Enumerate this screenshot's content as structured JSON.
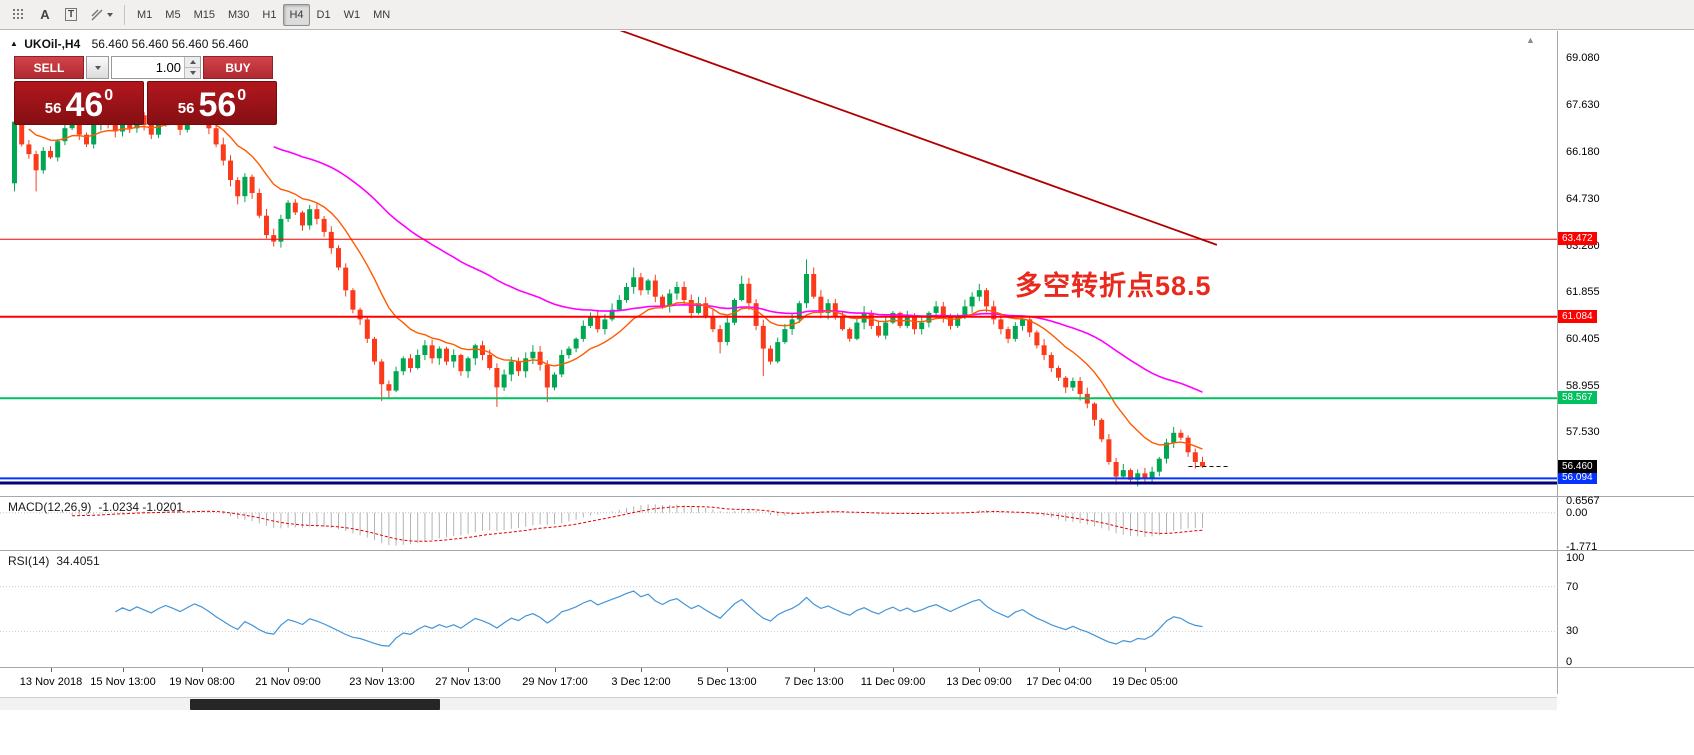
{
  "toolbar": {
    "tool_a": "A",
    "tool_t": "T",
    "timeframes": [
      "M1",
      "M5",
      "M15",
      "M30",
      "H1",
      "H4",
      "D1",
      "W1",
      "MN"
    ],
    "active_timeframe": "H4"
  },
  "chart_header": {
    "title": "UKOil-,H4",
    "quotes": "56.460 56.460 56.460 56.460"
  },
  "trade_panel": {
    "sell_label": "SELL",
    "buy_label": "BUY",
    "volume": "1.00",
    "bid_small": "56",
    "bid_big": "46",
    "bid_sup": "0",
    "ask_small": "56",
    "ask_big": "56",
    "ask_sup": "0"
  },
  "annotation": {
    "text": "多空转折点58.5",
    "color": "#e8291c"
  },
  "indicators": {
    "macd_label": "MACD(12,26,9)",
    "macd_values": "-1.0234 -1.0201",
    "rsi_label": "RSI(14)",
    "rsi_value": "34.4051"
  },
  "chart_data": {
    "type": "candlestick",
    "symbol": "UKOil-",
    "timeframe": "H4",
    "ylim": [
      55.55,
      69.9
    ],
    "first_open": 65.2,
    "closes": [
      67.1,
      66.4,
      66.1,
      65.6,
      66.2,
      66.0,
      66.5,
      66.9,
      67.2,
      66.7,
      66.4,
      67.0,
      67.35,
      67.1,
      66.8,
      67.2,
      66.9,
      67.3,
      67.0,
      66.7,
      67.1,
      67.4,
      67.15,
      66.85,
      67.2,
      67.55,
      67.3,
      66.9,
      66.4,
      65.9,
      65.3,
      64.8,
      65.4,
      64.9,
      64.2,
      63.6,
      63.4,
      64.1,
      64.6,
      64.3,
      63.9,
      64.4,
      64.1,
      63.7,
      63.2,
      62.6,
      61.9,
      61.3,
      61.0,
      60.4,
      59.7,
      59.0,
      58.8,
      59.4,
      59.8,
      59.5,
      59.9,
      60.2,
      59.8,
      60.1,
      59.7,
      59.9,
      59.4,
      59.8,
      60.2,
      59.9,
      59.5,
      58.9,
      59.3,
      59.7,
      59.4,
      59.8,
      60.0,
      59.6,
      58.9,
      59.3,
      59.9,
      60.1,
      60.4,
      60.8,
      61.1,
      60.7,
      61.0,
      61.3,
      61.6,
      62.0,
      62.3,
      61.9,
      62.2,
      61.7,
      61.4,
      61.8,
      62.0,
      61.6,
      61.2,
      61.5,
      61.1,
      60.7,
      60.3,
      60.9,
      61.6,
      62.1,
      61.5,
      60.8,
      60.1,
      59.7,
      60.3,
      60.7,
      61.0,
      61.5,
      62.4,
      61.7,
      61.2,
      61.5,
      61.1,
      60.7,
      60.4,
      60.9,
      61.2,
      60.8,
      60.5,
      60.9,
      61.2,
      60.8,
      61.1,
      60.7,
      60.9,
      61.2,
      61.4,
      61.1,
      60.8,
      61.1,
      61.4,
      61.7,
      61.9,
      61.4,
      61.0,
      60.7,
      60.4,
      60.8,
      61.0,
      60.6,
      60.2,
      59.9,
      59.5,
      59.2,
      58.9,
      59.1,
      58.7,
      58.4,
      57.9,
      57.3,
      56.6,
      56.15,
      56.35,
      56.05,
      56.25,
      56.1,
      56.3,
      56.7,
      57.2,
      57.5,
      57.35,
      56.9,
      56.6,
      56.46
    ],
    "wick_overrides": {
      "0": {
        "l": 64.95
      },
      "3": {
        "l": 64.95
      },
      "12": {
        "h": 67.6
      },
      "25": {
        "h": 67.65
      },
      "31": {
        "l": 64.55
      },
      "36": {
        "l": 63.25
      },
      "51": {
        "l": 58.48
      },
      "52": {
        "l": 58.55
      },
      "67": {
        "l": 58.3
      },
      "74": {
        "l": 58.45
      },
      "86": {
        "h": 62.6
      },
      "98": {
        "l": 59.95
      },
      "101": {
        "h": 62.35
      },
      "104": {
        "l": 59.25
      },
      "110": {
        "h": 62.85
      },
      "134": {
        "h": 62.1
      },
      "153": {
        "l": 55.9
      },
      "155": {
        "l": 55.92
      },
      "157": {
        "l": 55.95
      },
      "161": {
        "h": 57.68
      },
      "162": {
        "h": 57.6
      }
    },
    "up_color": "#00a651",
    "down_color": "#fb3a1c",
    "ma_fast": {
      "period": 13,
      "color": "#ff5a00"
    },
    "ma_slow": {
      "period": 50,
      "color": "#ff00ff"
    },
    "trendline": {
      "i1": 60,
      "p1": 71.85,
      "i2": 167,
      "p2": 63.3,
      "color": "#b20000"
    },
    "levels": [
      {
        "price": 63.472,
        "text": "63.472",
        "color": "#fe0000",
        "thickness": 1
      },
      {
        "price": 61.084,
        "text": "61.084",
        "color": "#fe0000",
        "thickness": 2
      },
      {
        "price": 58.567,
        "text": "58.567",
        "color": "#00c060",
        "thickness": 2
      },
      {
        "price": 56.094,
        "text": "56.094",
        "color": "#0433ff",
        "thickness": 2
      },
      {
        "price": 55.95,
        "text": "",
        "color": "#000080",
        "thickness": 3
      }
    ],
    "current_price": {
      "price": 56.46,
      "text": "56.460",
      "tag_color": "#000000"
    },
    "price_axis": [
      {
        "price": 69.08,
        "text": "69.080"
      },
      {
        "price": 67.63,
        "text": "67.630"
      },
      {
        "price": 66.18,
        "text": "66.180"
      },
      {
        "price": 64.73,
        "text": "64.730"
      },
      {
        "price": 63.28,
        "text": "63.280"
      },
      {
        "price": 61.855,
        "text": "61.855"
      },
      {
        "price": 60.405,
        "text": "60.405"
      },
      {
        "price": 58.955,
        "text": "58.955"
      },
      {
        "price": 57.53,
        "text": "57.530"
      }
    ],
    "time_labels": [
      {
        "i": 5,
        "text": "13 Nov 2018"
      },
      {
        "i": 15,
        "text": "15 Nov 13:00"
      },
      {
        "i": 26,
        "text": "19 Nov 08:00"
      },
      {
        "i": 38,
        "text": "21 Nov 09:00"
      },
      {
        "i": 51,
        "text": "23 Nov 13:00"
      },
      {
        "i": 63,
        "text": "27 Nov 13:00"
      },
      {
        "i": 75,
        "text": "29 Nov 17:00"
      },
      {
        "i": 87,
        "text": "3 Dec 12:00"
      },
      {
        "i": 99,
        "text": "5 Dec 13:00"
      },
      {
        "i": 111,
        "text": "7 Dec 13:00"
      },
      {
        "i": 122,
        "text": "11 Dec 09:00"
      },
      {
        "i": 134,
        "text": "13 Dec 09:00"
      },
      {
        "i": 145,
        "text": "17 Dec 04:00"
      },
      {
        "i": 157,
        "text": "19 Dec 05:00"
      }
    ],
    "macd": {
      "fast": 12,
      "slow": 26,
      "signal": 9,
      "vmax": 0.6567,
      "vmin": -1.771,
      "hist_color": "#b3b3b3",
      "signal_color": "#e60000",
      "axis": [
        {
          "v": 0.6567,
          "text": "0.6567"
        },
        {
          "v": 0,
          "text": "0.00"
        },
        {
          "v": -1.771,
          "text": "-1.771"
        }
      ]
    },
    "rsi": {
      "period": 14,
      "color": "#4394d8",
      "levels": [
        70,
        30
      ],
      "axis": [
        {
          "v": 100,
          "text": "100"
        },
        {
          "v": 70,
          "text": "70"
        },
        {
          "v": 30,
          "text": "30"
        },
        {
          "v": 0,
          "text": "0"
        }
      ]
    }
  }
}
